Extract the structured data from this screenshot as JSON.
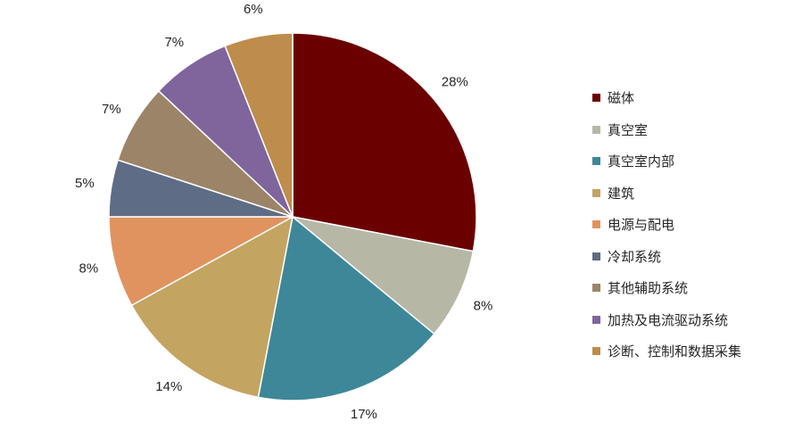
{
  "chart_data": {
    "type": "pie",
    "title": "",
    "legend_position": "right",
    "slices": [
      {
        "label": "磁体",
        "value": 28,
        "value_label": "28%",
        "color": "#6B0000"
      },
      {
        "label": "真空室",
        "value": 8,
        "value_label": "8%",
        "color": "#B7B7A6"
      },
      {
        "label": "真空室内部",
        "value": 17,
        "value_label": "17%",
        "color": "#3D8799"
      },
      {
        "label": "建筑",
        "value": 14,
        "value_label": "14%",
        "color": "#C3A461"
      },
      {
        "label": "电源与配电",
        "value": 8,
        "value_label": "8%",
        "color": "#E0935F"
      },
      {
        "label": "冷却系统",
        "value": 5,
        "value_label": "5%",
        "color": "#5F6C86"
      },
      {
        "label": "其他辅助系统",
        "value": 7,
        "value_label": "7%",
        "color": "#9C8468"
      },
      {
        "label": "加热及电流驱动系统",
        "value": 7,
        "value_label": "7%",
        "color": "#7F659C"
      },
      {
        "label": "诊断、控制和数据采集",
        "value": 6,
        "value_label": "6%",
        "color": "#BE8C4B"
      }
    ]
  }
}
